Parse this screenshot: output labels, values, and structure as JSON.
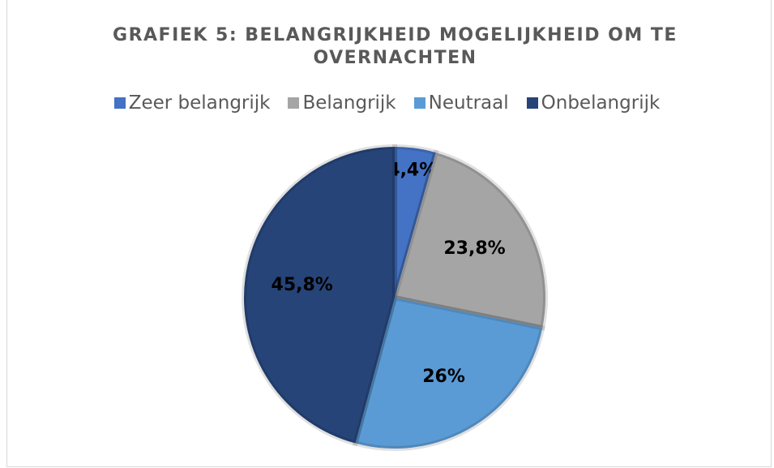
{
  "chart_data": {
    "type": "pie",
    "title": "GRAFIEK 5: BELANGRIJKHEID MOGELIJKHEID OM TE OVERNACHTEN",
    "categories": [
      "Zeer belangrijk",
      "Belangrijk",
      "Neutraal",
      "Onbelangrijk"
    ],
    "values": [
      4.4,
      23.8,
      26,
      45.8
    ],
    "value_labels": [
      "4,4%",
      "23,8%",
      "26%",
      "45,8%"
    ],
    "colors": [
      "#4472c4",
      "#a5a5a5",
      "#5b9bd5",
      "#264478"
    ],
    "legend": "top"
  }
}
